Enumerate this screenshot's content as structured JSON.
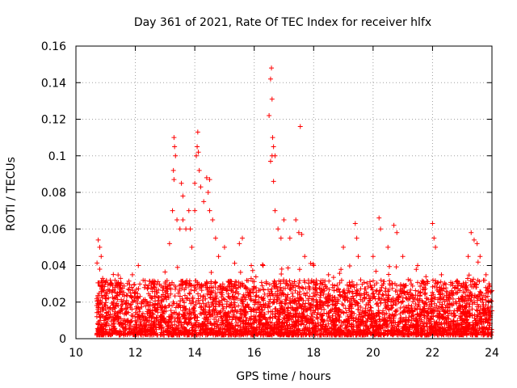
{
  "chart_data": {
    "type": "scatter",
    "title": "Day 361 of 2021, Rate Of TEC Index for receiver hlfx",
    "xlabel": "GPS time / hours",
    "ylabel": "ROTI / TECUs",
    "xlim": [
      10,
      24
    ],
    "ylim": [
      0,
      0.16
    ],
    "x_ticks": [
      10,
      12,
      14,
      16,
      18,
      20,
      22,
      24
    ],
    "x_tick_labels": [
      "10",
      "12",
      "14",
      "16",
      "18",
      "20",
      "22",
      "24"
    ],
    "y_ticks": [
      0,
      0.02,
      0.04,
      0.06,
      0.08,
      0.1,
      0.12,
      0.14,
      0.16
    ],
    "y_tick_labels": [
      "0",
      "0.02",
      "0.04",
      "0.06",
      "0.08",
      "0.1",
      "0.12",
      "0.14",
      "0.16"
    ],
    "grid": true,
    "marker": "+",
    "marker_color": "#ff0000",
    "series": [
      {
        "name": "ROTI",
        "points": [
          [
            10.75,
            0.054
          ],
          [
            10.8,
            0.05
          ],
          [
            10.85,
            0.045
          ],
          [
            10.9,
            0.033
          ],
          [
            10.8,
            0.038
          ],
          [
            11.2,
            0.03
          ],
          [
            11.5,
            0.033
          ],
          [
            11.9,
            0.035
          ],
          [
            12.1,
            0.04
          ],
          [
            12.6,
            0.03
          ],
          [
            13.0,
            0.03
          ],
          [
            13.15,
            0.052
          ],
          [
            13.25,
            0.07
          ],
          [
            13.28,
            0.092
          ],
          [
            13.3,
            0.11
          ],
          [
            13.32,
            0.105
          ],
          [
            13.35,
            0.1
          ],
          [
            13.3,
            0.087
          ],
          [
            13.4,
            0.065
          ],
          [
            13.5,
            0.06
          ],
          [
            13.6,
            0.065
          ],
          [
            13.7,
            0.06
          ],
          [
            13.55,
            0.085
          ],
          [
            13.6,
            0.078
          ],
          [
            13.8,
            0.07
          ],
          [
            13.85,
            0.06
          ],
          [
            13.9,
            0.05
          ],
          [
            14.0,
            0.07
          ],
          [
            14.05,
            0.1
          ],
          [
            14.1,
            0.113
          ],
          [
            14.08,
            0.105
          ],
          [
            14.12,
            0.102
          ],
          [
            14.15,
            0.092
          ],
          [
            14.2,
            0.083
          ],
          [
            14.0,
            0.085
          ],
          [
            14.3,
            0.075
          ],
          [
            14.4,
            0.088
          ],
          [
            14.5,
            0.087
          ],
          [
            14.45,
            0.08
          ],
          [
            14.5,
            0.07
          ],
          [
            14.6,
            0.065
          ],
          [
            14.7,
            0.055
          ],
          [
            14.8,
            0.045
          ],
          [
            15.0,
            0.05
          ],
          [
            15.5,
            0.052
          ],
          [
            15.6,
            0.055
          ],
          [
            15.9,
            0.04
          ],
          [
            16.3,
            0.04
          ],
          [
            16.5,
            0.122
          ],
          [
            16.55,
            0.142
          ],
          [
            16.58,
            0.148
          ],
          [
            16.6,
            0.131
          ],
          [
            16.62,
            0.11
          ],
          [
            16.65,
            0.105
          ],
          [
            16.6,
            0.1
          ],
          [
            16.7,
            0.1
          ],
          [
            16.55,
            0.097
          ],
          [
            16.65,
            0.086
          ],
          [
            16.7,
            0.07
          ],
          [
            16.8,
            0.06
          ],
          [
            16.9,
            0.055
          ],
          [
            17.0,
            0.065
          ],
          [
            17.2,
            0.055
          ],
          [
            17.4,
            0.065
          ],
          [
            17.5,
            0.058
          ],
          [
            17.55,
            0.116
          ],
          [
            17.6,
            0.057
          ],
          [
            17.7,
            0.045
          ],
          [
            18.0,
            0.04
          ],
          [
            18.5,
            0.035
          ],
          [
            19.0,
            0.05
          ],
          [
            19.4,
            0.063
          ],
          [
            19.45,
            0.055
          ],
          [
            19.5,
            0.045
          ],
          [
            20.0,
            0.045
          ],
          [
            20.2,
            0.066
          ],
          [
            20.25,
            0.06
          ],
          [
            20.5,
            0.05
          ],
          [
            20.7,
            0.062
          ],
          [
            20.8,
            0.058
          ],
          [
            21.0,
            0.045
          ],
          [
            21.5,
            0.04
          ],
          [
            22.0,
            0.063
          ],
          [
            22.05,
            0.055
          ],
          [
            22.1,
            0.05
          ],
          [
            22.3,
            0.035
          ],
          [
            22.8,
            0.025
          ],
          [
            23.2,
            0.045
          ],
          [
            23.3,
            0.058
          ],
          [
            23.4,
            0.054
          ],
          [
            23.5,
            0.052
          ],
          [
            23.6,
            0.045
          ],
          [
            23.8,
            0.035
          ],
          [
            23.9,
            0.03
          ]
        ],
        "dense_band": {
          "x_start": 10.7,
          "x_end": 24.0,
          "y_min": 0.002,
          "y_typical_max": 0.03,
          "approx_points": 4200
        }
      }
    ]
  }
}
